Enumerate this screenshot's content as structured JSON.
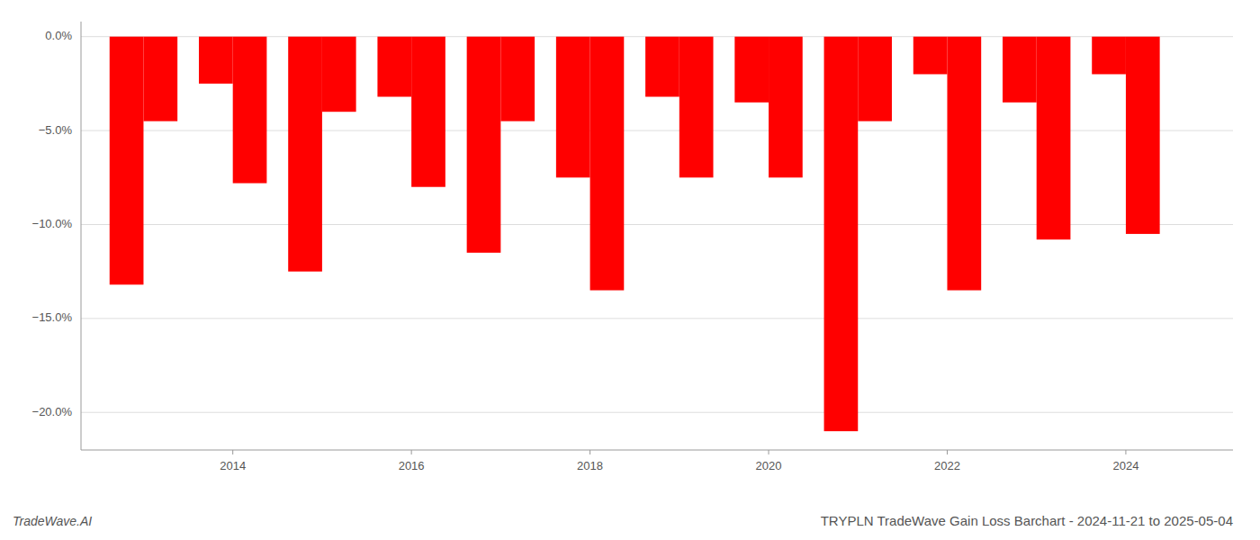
{
  "chart_data": {
    "type": "bar",
    "title": "TRYPLN TradeWave Gain Loss Barchart - 2024-11-21 to 2025-05-04",
    "annotation": "TradeWave.AI",
    "x": [
      2013,
      2014,
      2015,
      2016,
      2017,
      2018,
      2019,
      2020,
      2021,
      2022,
      2023,
      2024
    ],
    "series": [
      {
        "color": "#ff0000",
        "values": [
          -13.2,
          -2.5,
          -12.5,
          -3.2,
          -11.5,
          -7.5,
          -3.2,
          -3.5,
          -21.0,
          -2.0,
          -3.5,
          -2.0
        ]
      },
      {
        "color": "#ff0000",
        "values": [
          -4.5,
          -7.8,
          -4.0,
          -8.0,
          -4.5,
          -13.5,
          -7.5,
          -7.5,
          -4.5,
          -13.5,
          -10.8,
          -10.5
        ]
      }
    ],
    "xlim": [
      2012.3,
      2025.2
    ],
    "xticks": [
      2014,
      2016,
      2018,
      2020,
      2022,
      2024
    ],
    "ylim": [
      -22,
      0.8
    ],
    "yticks": [
      {
        "value": 0.0,
        "label": "0.0%"
      },
      {
        "value": -5.0,
        "label": "−5.0%"
      },
      {
        "value": -10.0,
        "label": "−10.0%"
      },
      {
        "value": -15.0,
        "label": "−15.0%"
      },
      {
        "value": -20.0,
        "label": "−20.0%"
      }
    ],
    "grid": true
  }
}
